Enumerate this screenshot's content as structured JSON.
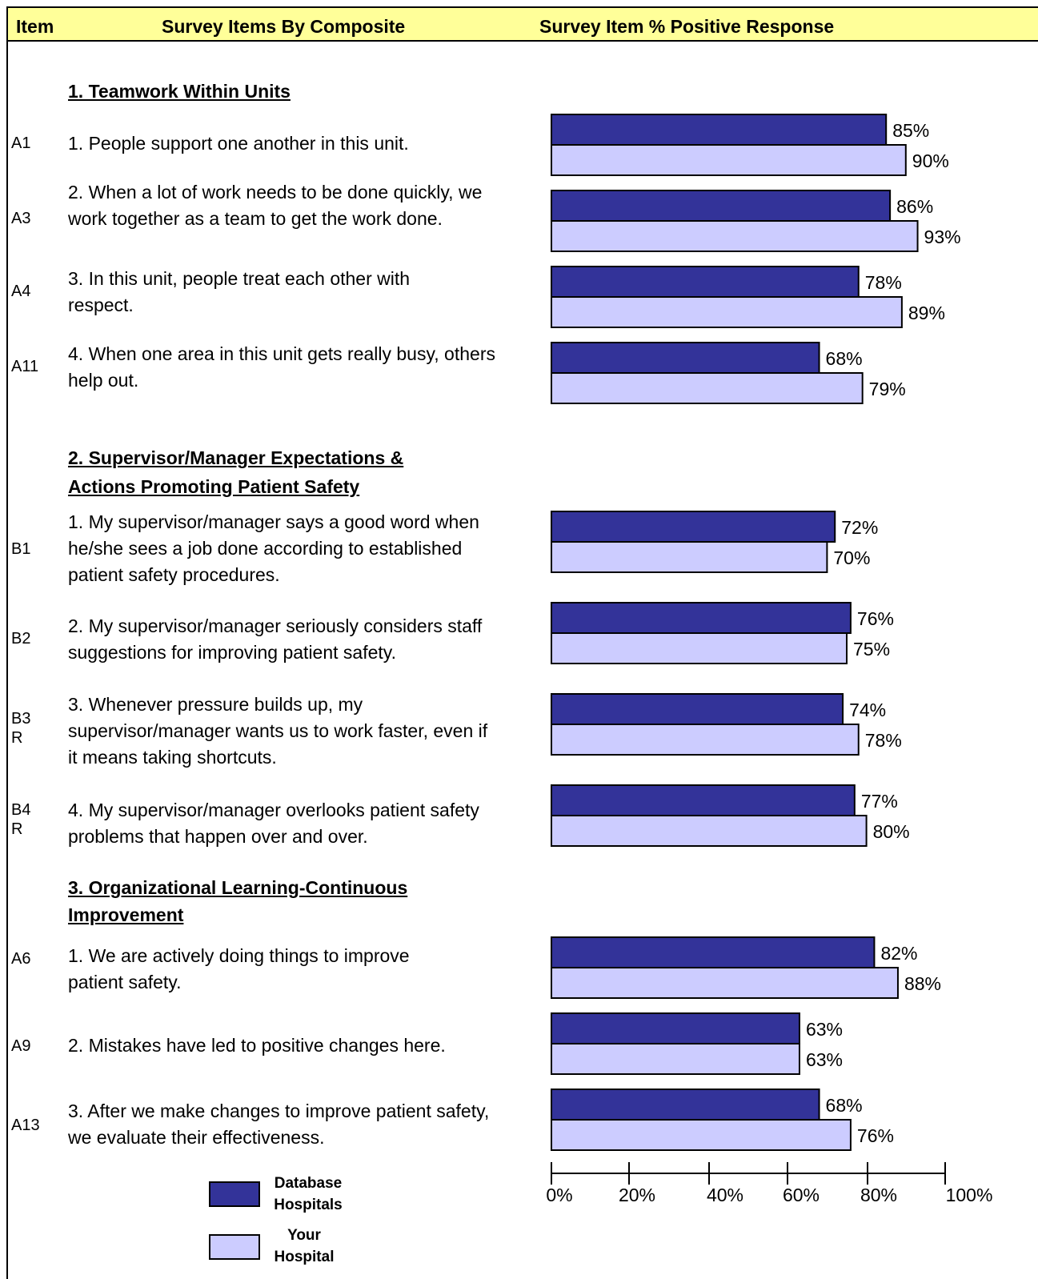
{
  "header": {
    "item": "Item",
    "composite": "Survey Items By Composite",
    "percent": "Survey Item % Positive Response"
  },
  "sections": [
    {
      "title_lines": [
        "1.  Teamwork Within Units"
      ],
      "items": [
        {
          "code": [
            "A1"
          ],
          "text": "1. People support one another in this unit."
        },
        {
          "code": [
            "A3"
          ],
          "text": "2. When a lot of work needs to be done quickly, we work together as a team to get the work done."
        },
        {
          "code": [
            "A4"
          ],
          "text": "3. In this unit, people treat each other with respect."
        },
        {
          "code": [
            "A11"
          ],
          "text": "4. When one area in this unit gets really busy, others help out."
        }
      ]
    },
    {
      "title_lines": [
        "2.  Supervisor/Manager Expectations & ",
        "Actions Promoting Patient Safety"
      ],
      "items": [
        {
          "code": [
            "B1"
          ],
          "text": "1. My supervisor/manager says a good word when he/she sees a job done according to established patient safety procedures."
        },
        {
          "code": [
            "B2"
          ],
          "text": "2. My supervisor/manager seriously considers staff suggestions for improving patient safety."
        },
        {
          "code": [
            "B3",
            "R"
          ],
          "text": "3. Whenever pressure builds up, my supervisor/manager wants us to work faster, even if it means taking shortcuts."
        },
        {
          "code": [
            "B4",
            "R"
          ],
          "text": "4. My supervisor/manager overlooks patient safety problems that happen over and over."
        }
      ]
    },
    {
      "title_lines": [
        "3.  Organizational Learning-Continuous ",
        "Improvement"
      ],
      "items": [
        {
          "code": [
            "A6"
          ],
          "text": "1. We are actively doing things to improve patient safety."
        },
        {
          "code": [
            "A9"
          ],
          "text": "2. Mistakes have led to positive changes here."
        },
        {
          "code": [
            "A13"
          ],
          "text": "3. After we make changes to improve patient safety, we evaluate their effectiveness."
        }
      ]
    }
  ],
  "legend": {
    "database": "Database Hospitals",
    "your": "Your Hospital"
  },
  "colors": {
    "database": "#333399",
    "your": "#ccccff",
    "header_bg": "#ffff99"
  },
  "chart_data": {
    "type": "bar",
    "orientation": "horizontal",
    "categories": [
      "A1",
      "A3",
      "A4",
      "A11",
      "B1",
      "B2",
      "B3 R",
      "B4 R",
      "A6",
      "A9",
      "A13"
    ],
    "series": [
      {
        "name": "Database Hospitals",
        "values": [
          85,
          86,
          78,
          68,
          72,
          76,
          74,
          77,
          82,
          63,
          68
        ]
      },
      {
        "name": "Your Hospital",
        "values": [
          90,
          93,
          89,
          79,
          70,
          75,
          78,
          80,
          88,
          63,
          76
        ]
      }
    ],
    "xlim": [
      0,
      100
    ],
    "xticks": [
      "0%",
      "20%",
      "40%",
      "60%",
      "80%",
      "100%"
    ],
    "data_label_suffix": "%"
  }
}
